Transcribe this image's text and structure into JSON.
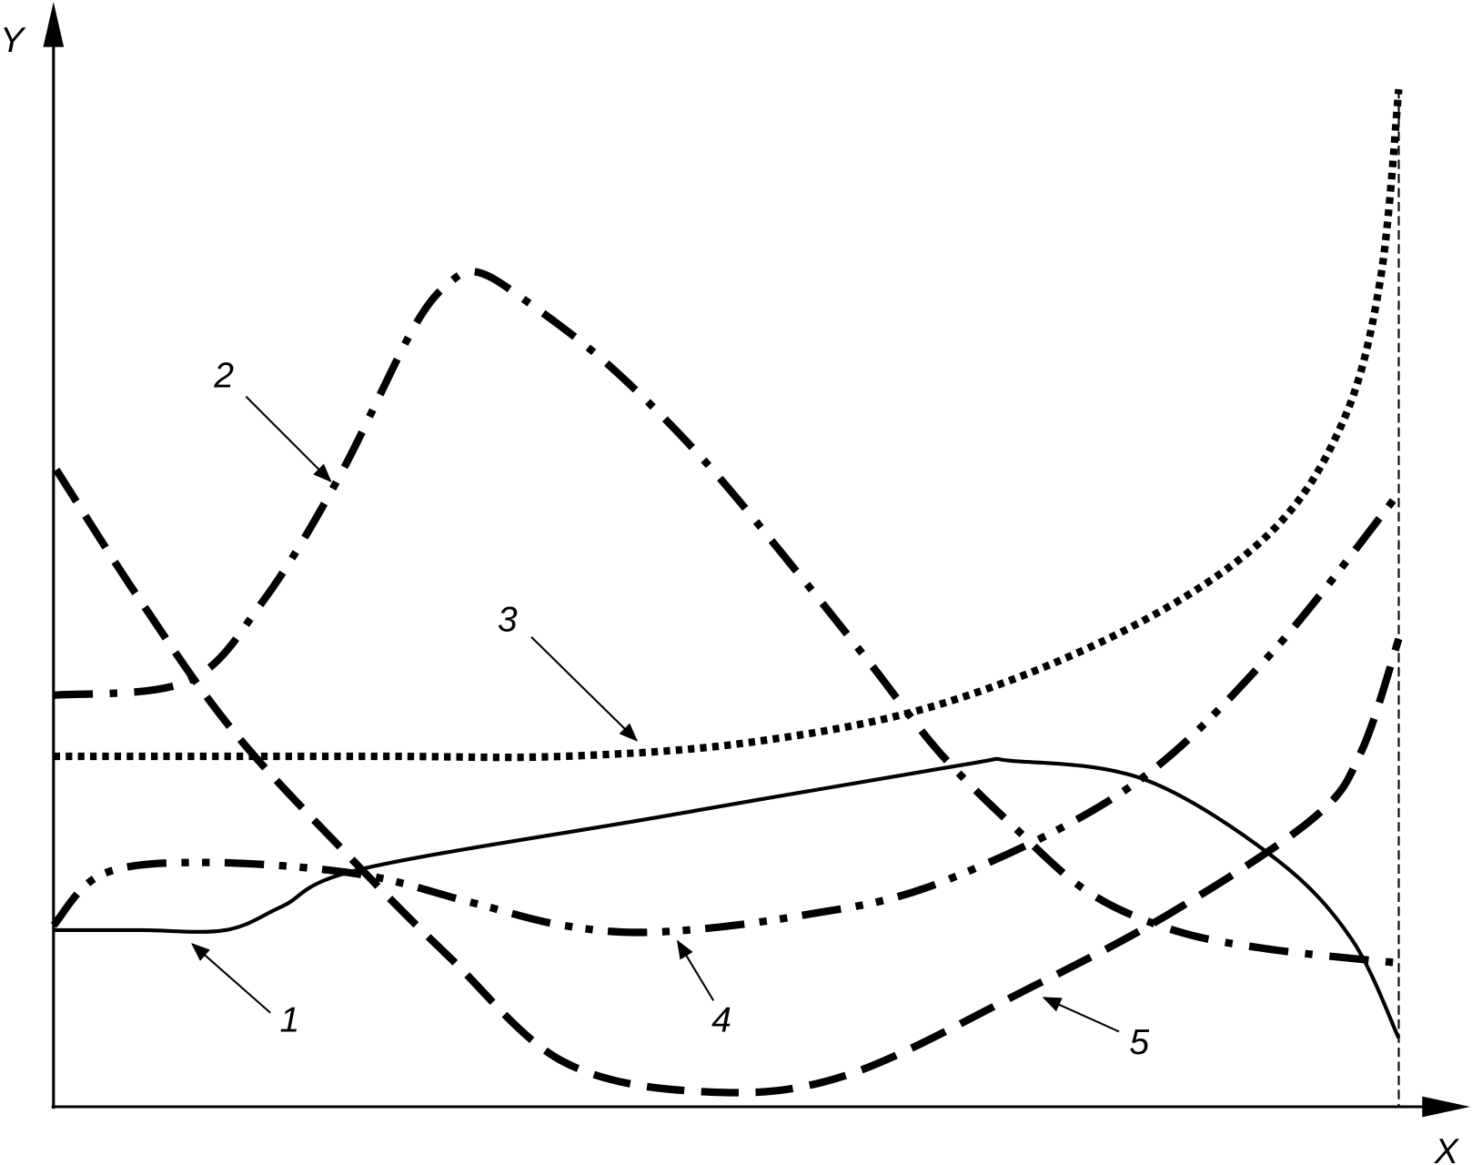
{
  "axes": {
    "x_label": "X",
    "y_label": "Y"
  },
  "curve_labels": [
    "1",
    "2",
    "3",
    "4",
    "5"
  ],
  "line_color": "#000000",
  "background": "#ffffff"
}
